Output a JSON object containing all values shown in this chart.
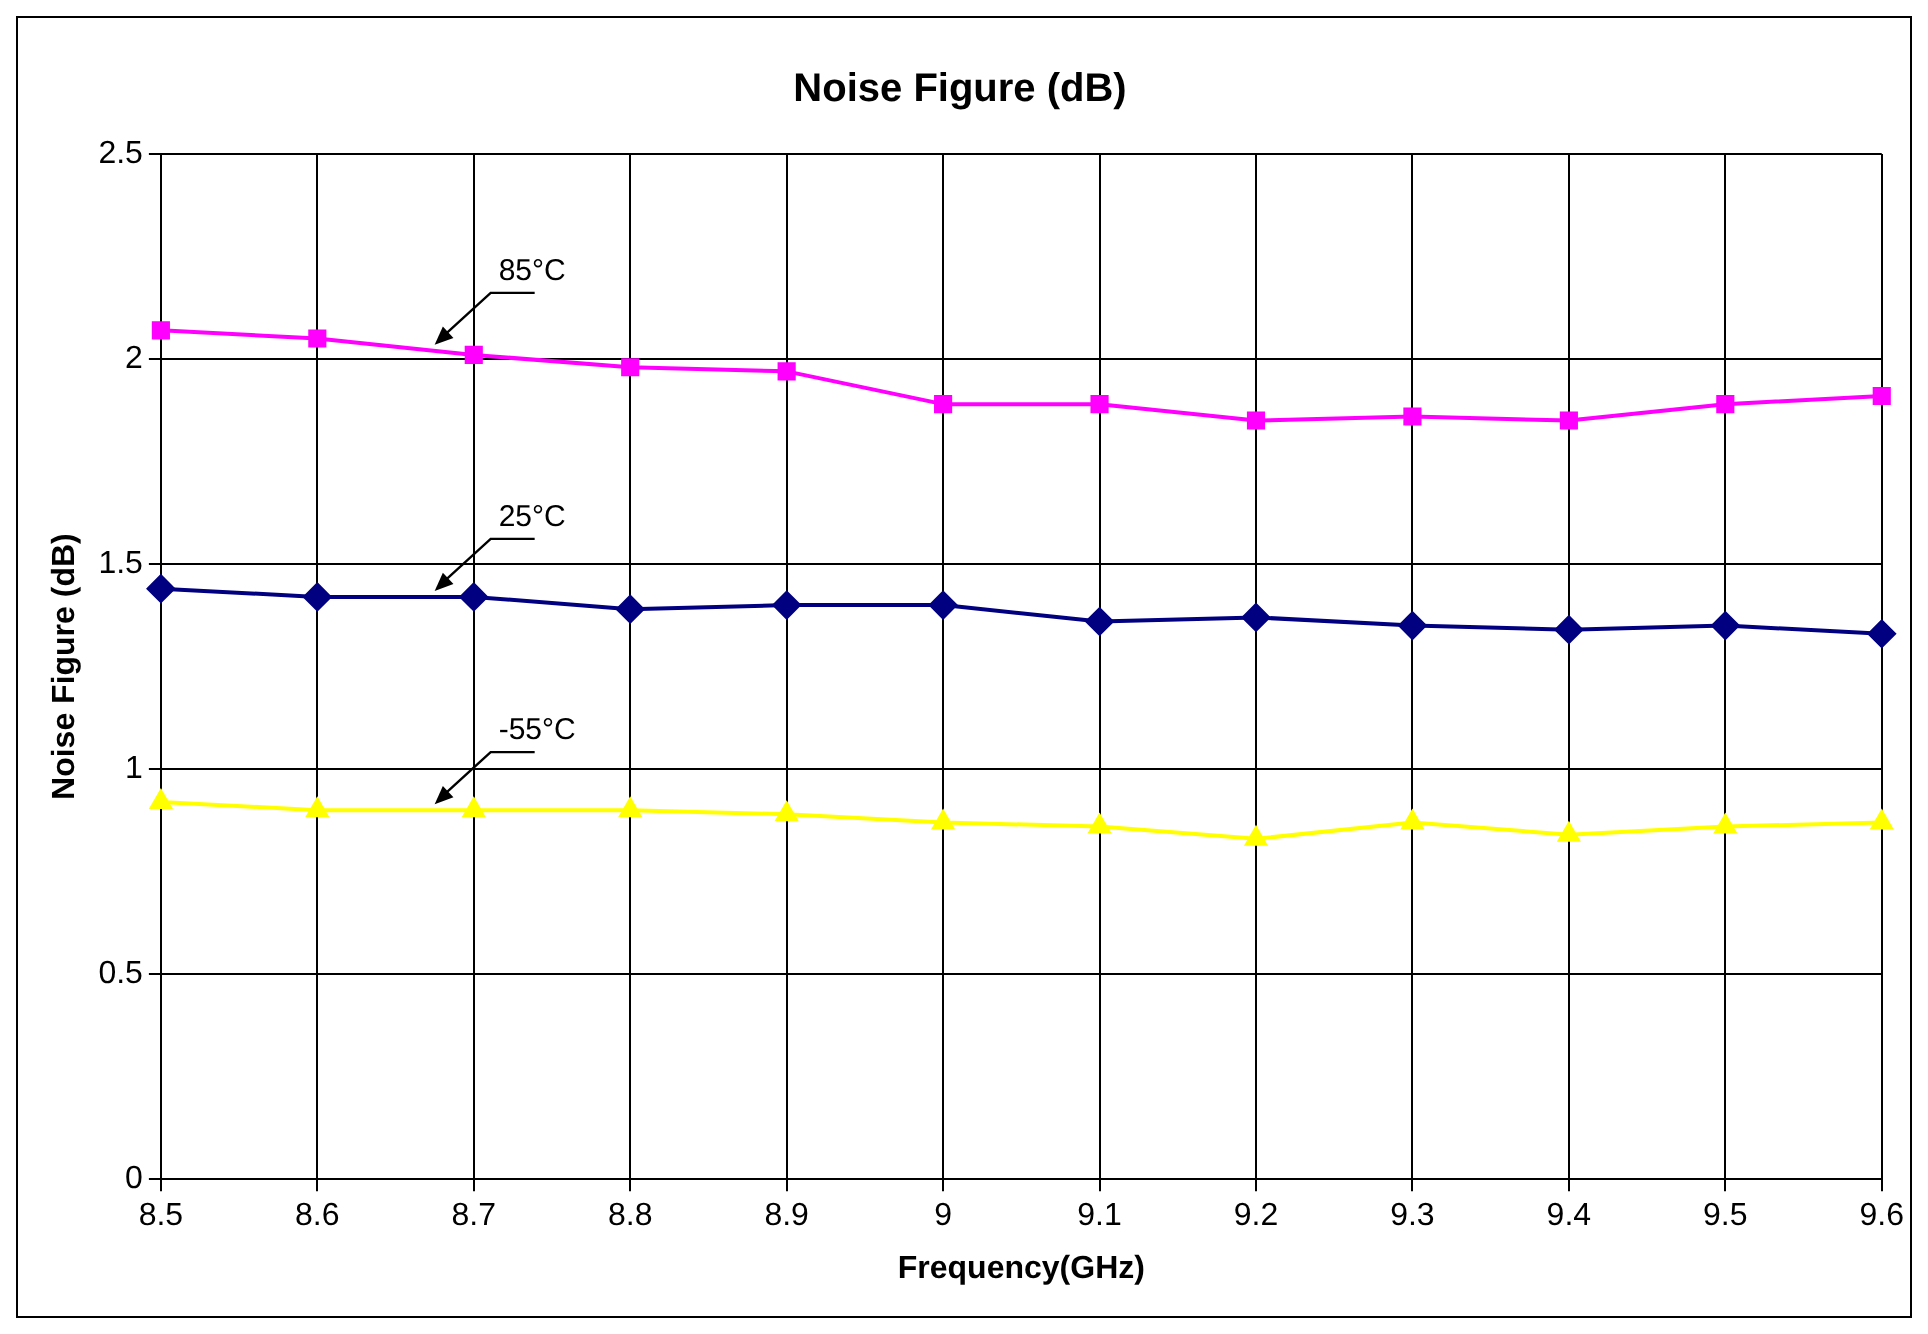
{
  "chart_data": {
    "type": "line",
    "title": "Noise Figure (dB)",
    "xlabel": "Frequency(GHz)",
    "ylabel": "Noise Figure (dB)",
    "categories": [
      "8.5",
      "8.6",
      "8.7",
      "8.8",
      "8.9",
      "9",
      "9.1",
      "9.2",
      "9.3",
      "9.4",
      "9.5",
      "9.6"
    ],
    "series": [
      {
        "name": "85°C",
        "color": "#ff00ff",
        "marker": "square",
        "values": [
          2.07,
          2.05,
          2.01,
          1.98,
          1.97,
          1.89,
          1.89,
          1.85,
          1.86,
          1.85,
          1.89,
          1.91
        ]
      },
      {
        "name": "25°C",
        "color": "#000080",
        "marker": "diamond",
        "values": [
          1.44,
          1.42,
          1.42,
          1.39,
          1.4,
          1.4,
          1.36,
          1.37,
          1.35,
          1.34,
          1.35,
          1.33
        ]
      },
      {
        "name": "-55°C",
        "color": "#ffff00",
        "marker": "triangle",
        "values": [
          0.92,
          0.9,
          0.9,
          0.9,
          0.89,
          0.87,
          0.86,
          0.83,
          0.87,
          0.84,
          0.86,
          0.87
        ]
      }
    ],
    "ylim": [
      0,
      2.5
    ],
    "yticks": [
      0,
      0.5,
      1,
      1.5,
      2,
      2.5
    ],
    "grid": true,
    "legend": false
  }
}
